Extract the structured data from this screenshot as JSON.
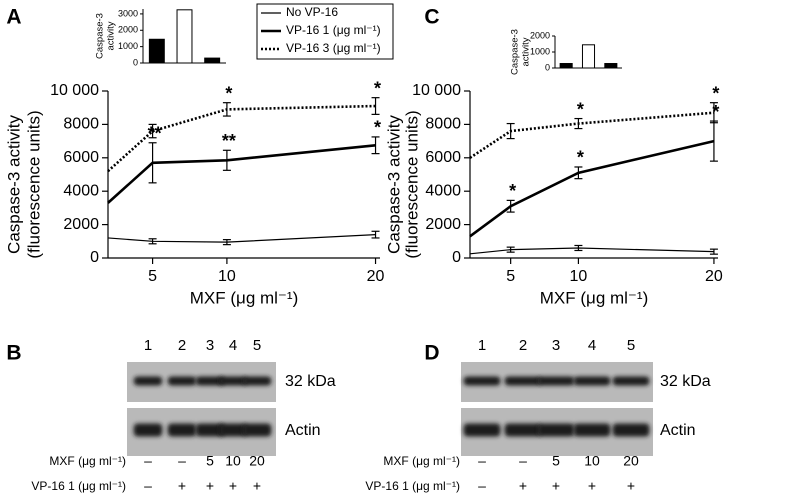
{
  "chart_data": [
    {
      "type": "line",
      "panel": "A",
      "ylabel": [
        "Caspase-3 activity",
        "(fluorescence units)"
      ],
      "xlabel": "MXF (μg ml⁻¹)",
      "x": [
        2,
        5,
        10,
        20
      ],
      "xlim": [
        2,
        20.3
      ],
      "xticks": [
        5,
        10,
        20
      ],
      "ylim": [
        0,
        10000
      ],
      "yticks": [
        0,
        2000,
        4000,
        6000,
        8000,
        {
          "value": 10000,
          "label": "10 000"
        }
      ],
      "legend": "top",
      "series": [
        {
          "name": "No VP-16",
          "line_style": "thin",
          "color": "#000000",
          "values": [
            1200,
            1000,
            950,
            1400
          ],
          "errors": [
            null,
            150,
            150,
            200
          ],
          "significance": [
            null,
            null,
            null,
            null
          ]
        },
        {
          "name": "VP-16 1 (μg ml⁻¹)",
          "line_style": "thick",
          "color": "#000000",
          "values": [
            3300,
            5700,
            5850,
            6750
          ],
          "errors": [
            null,
            1200,
            600,
            500
          ],
          "significance": [
            null,
            "**",
            "**",
            "*"
          ]
        },
        {
          "name": "VP-16 3 (μg ml⁻¹)",
          "line_style": "dotted",
          "color": "#000000",
          "values": [
            5200,
            7600,
            8900,
            9100
          ],
          "errors": [
            null,
            400,
            400,
            500
          ],
          "significance": [
            null,
            null,
            "*",
            "*"
          ]
        }
      ]
    },
    {
      "type": "bar",
      "ylabel": [
        "Caspase-3",
        "activity"
      ],
      "ylim": [
        0,
        3300
      ],
      "yticks": [
        0,
        1000,
        2000,
        3000
      ],
      "values": [
        1450,
        3250,
        300
      ],
      "colors": [
        "#000000",
        "#ffffff",
        "#000000"
      ]
    },
    {
      "type": "line",
      "panel": "C",
      "ylabel": [
        "Caspase-3 activity",
        "(fluorescence units)"
      ],
      "xlabel": "MXF (μg ml⁻¹)",
      "x": [
        2,
        5,
        10,
        20
      ],
      "xlim": [
        2,
        20.3
      ],
      "xticks": [
        5,
        10,
        20
      ],
      "ylim": [
        0,
        10000
      ],
      "yticks": [
        0,
        2000,
        4000,
        6000,
        8000,
        {
          "value": 10000,
          "label": "10 000"
        }
      ],
      "series": [
        {
          "line_style": "thin",
          "color": "#000000",
          "values": [
            250,
            500,
            600,
            380
          ],
          "errors": [
            null,
            150,
            150,
            150
          ],
          "significance": [
            null,
            null,
            null,
            null
          ]
        },
        {
          "line_style": "thick",
          "color": "#000000",
          "values": [
            1300,
            3100,
            5100,
            7000
          ],
          "errors": [
            null,
            350,
            350,
            1200
          ],
          "significance": [
            null,
            "*",
            "*",
            "*"
          ]
        },
        {
          "line_style": "dotted",
          "color": "#000000",
          "values": [
            6000,
            7600,
            8050,
            8700
          ],
          "errors": [
            null,
            450,
            300,
            600
          ],
          "significance": [
            null,
            null,
            "*",
            "*"
          ]
        }
      ]
    },
    {
      "type": "bar",
      "ylabel": [
        "Caspase-3",
        "activity"
      ],
      "ylim": [
        0,
        2000
      ],
      "yticks": [
        0,
        1000,
        2000
      ],
      "values": [
        280,
        1450,
        280
      ],
      "colors": [
        "#000000",
        "#ffffff",
        "#000000"
      ]
    }
  ],
  "blots": [
    {
      "panel": "B",
      "lanes": [
        "1",
        "2",
        "3",
        "4",
        "5"
      ],
      "bands": [
        "32 kDa",
        "Actin"
      ],
      "rows": [
        {
          "label": "MXF (μg ml⁻¹)",
          "cells": [
            "–",
            "–",
            "5",
            "10",
            "20"
          ]
        },
        {
          "label": "VP-16 1 (μg ml⁻¹)",
          "cells": [
            "–",
            "+",
            "+",
            "+",
            "+"
          ]
        }
      ]
    },
    {
      "panel": "D",
      "lanes": [
        "1",
        "2",
        "3",
        "4",
        "5"
      ],
      "bands": [
        "32 kDa",
        "Actin"
      ],
      "rows": [
        {
          "label": "MXF (μg ml⁻¹)",
          "cells": [
            "–",
            "–",
            "5",
            "10",
            "20"
          ]
        },
        {
          "label": "VP-16 1 (μg ml⁻¹)",
          "cells": [
            "–",
            "+",
            "+",
            "+",
            "+"
          ]
        }
      ]
    }
  ]
}
